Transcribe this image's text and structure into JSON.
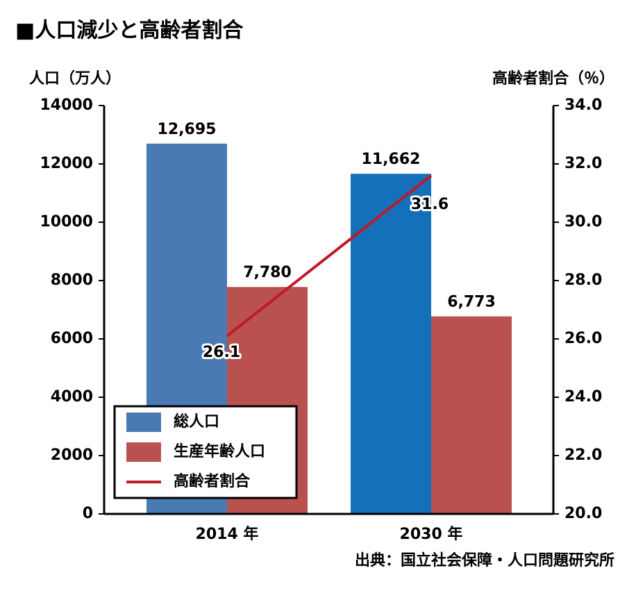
{
  "chart_data": {
    "type": "bar",
    "title": "■人口減少と高齢者割合",
    "y_label": "人口（万人）",
    "y2_label": "高齢者割合（％）",
    "source": "出典：国立社会保障・人口問題研究所",
    "categories": [
      "2014 年",
      "2030 年"
    ],
    "series": [
      {
        "name": "総人口",
        "color": "#4a7ab4",
        "colors": [
          "#4a7ab4",
          "#1470b9"
        ],
        "values": [
          12695,
          11662
        ],
        "value_labels": [
          "12,695",
          "11,662"
        ]
      },
      {
        "name": "生産年齢人口",
        "color": "#b9524f",
        "values": [
          7780,
          6773
        ],
        "value_labels": [
          "7,780",
          "6,773"
        ]
      },
      {
        "name": "高齢者割合",
        "type": "line",
        "axis": "y2",
        "color": "#c0182a",
        "values": [
          26.1,
          31.6
        ]
      }
    ],
    "ylim": [
      0,
      14000
    ],
    "yticks": [
      0,
      2000,
      4000,
      6000,
      8000,
      10000,
      12000,
      14000
    ],
    "y2lim": [
      20,
      34
    ],
    "y2ticks": [
      {
        "value": 20,
        "label": "20.0"
      },
      {
        "value": 22,
        "label": "22.0"
      },
      {
        "value": 24,
        "label": "24.0"
      },
      {
        "value": 26,
        "label": "26.0"
      },
      {
        "value": 28,
        "label": "28.0"
      },
      {
        "value": 30,
        "label": "30.0"
      },
      {
        "value": 32,
        "label": "32.0"
      },
      {
        "value": 34,
        "label": "34.0"
      }
    ],
    "grid": false,
    "legend": "lower left"
  }
}
